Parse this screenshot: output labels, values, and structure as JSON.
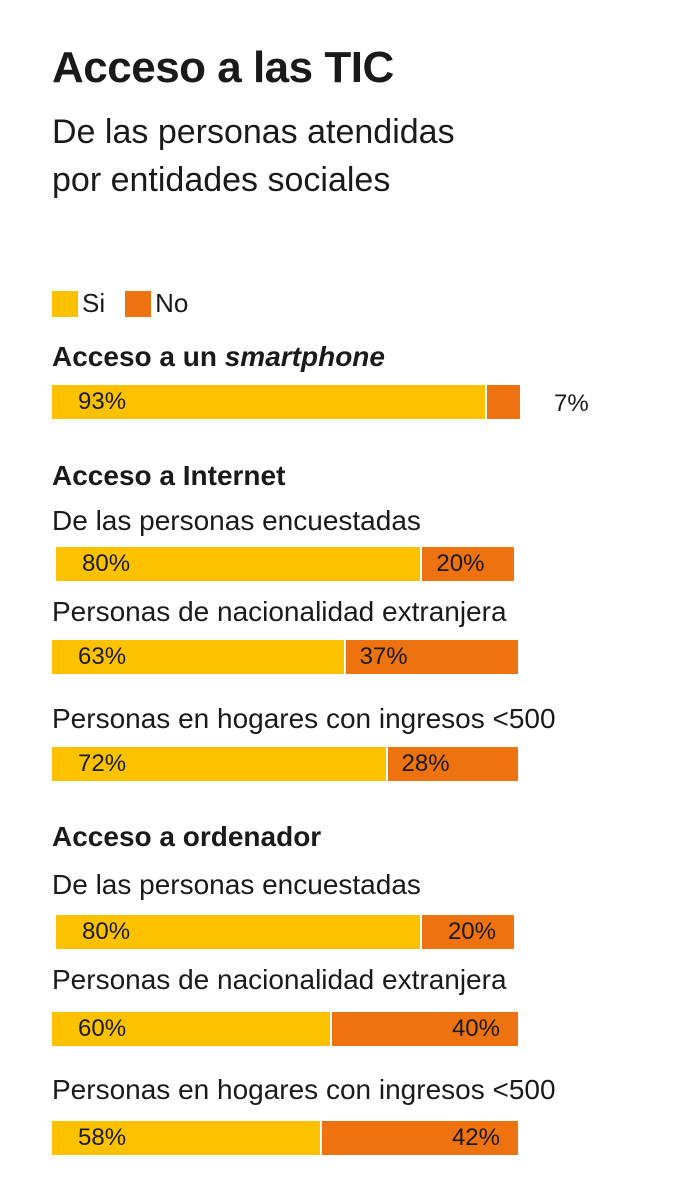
{
  "title": "Acceso a las TIC",
  "subtitle_line1": "De las personas atendidas",
  "subtitle_line2": "por entidades sociales",
  "colors": {
    "si": "#fcc200",
    "no": "#ee7310"
  },
  "legend": [
    {
      "label": "Si",
      "color": "#fcc200"
    },
    {
      "label": "No",
      "color": "#ee7310"
    }
  ],
  "chart_data": {
    "type": "bar",
    "stacked": true,
    "orientation": "horizontal",
    "title": "Acceso a las TIC",
    "subtitle": "De las personas atendidas por entidades sociales",
    "series_names": [
      "Si",
      "No"
    ],
    "sections": [
      {
        "title_plain": "Acceso a un ",
        "title_italic": "smartphone",
        "rows": [
          {
            "label": "",
            "si": 93,
            "no": 7,
            "si_label": "93%",
            "no_label": "7%"
          }
        ]
      },
      {
        "title_plain": "Acceso a Internet",
        "title_italic": "",
        "rows": [
          {
            "label": "De las personas encuestadas",
            "si": 80,
            "no": 20,
            "si_label": "80%",
            "no_label": "20%"
          },
          {
            "label": "Personas de nacionalidad extranjera",
            "si": 63,
            "no": 37,
            "si_label": "63%",
            "no_label": "37%"
          },
          {
            "label": "Personas en hogares con ingresos <500",
            "si": 72,
            "no": 28,
            "si_label": "72%",
            "no_label": "28%"
          }
        ]
      },
      {
        "title_plain": "Acceso a ordenador",
        "title_italic": "",
        "rows": [
          {
            "label": "De las personas encuestadas",
            "si": 80,
            "no": 20,
            "si_label": "80%",
            "no_label": "20%"
          },
          {
            "label": "Personas de nacionalidad extranjera",
            "si": 60,
            "no": 40,
            "si_label": "60%",
            "no_label": "40%"
          },
          {
            "label": "Personas en hogares con ingresos <500",
            "si": 58,
            "no": 42,
            "si_label": "58%",
            "no_label": "42%"
          }
        ]
      }
    ]
  }
}
